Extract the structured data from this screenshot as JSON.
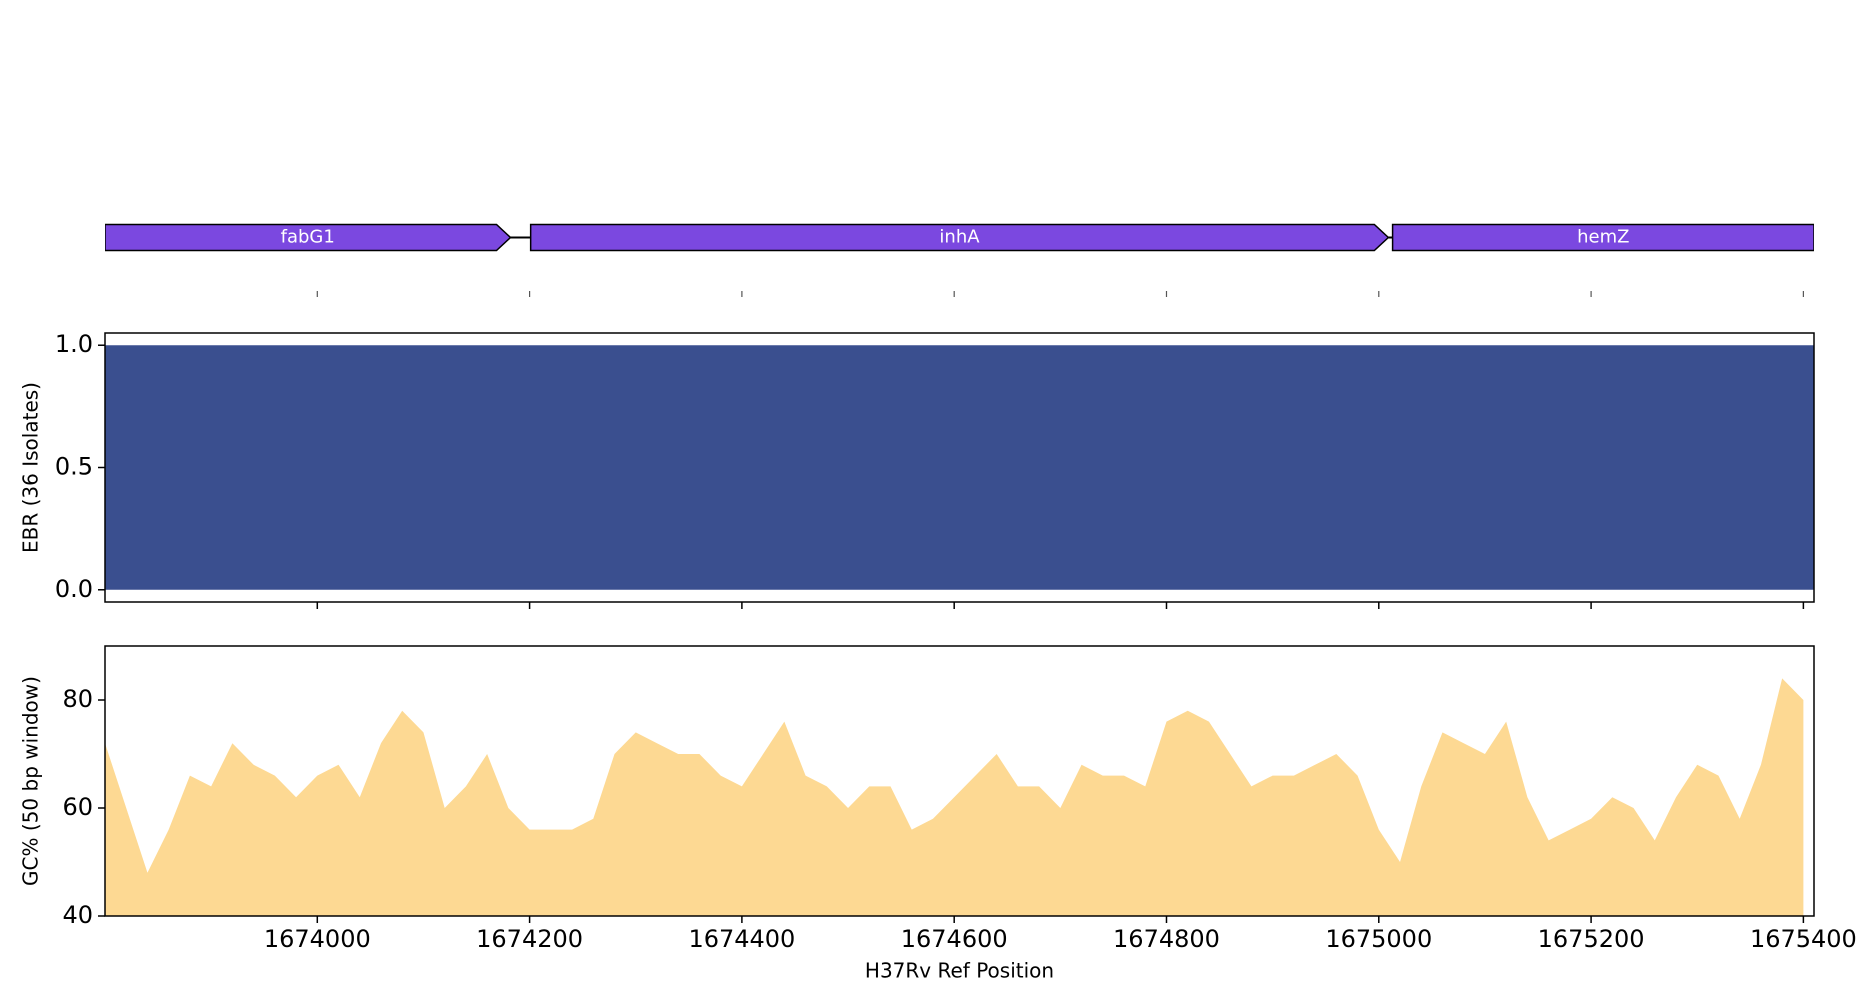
{
  "chart_data": [
    {
      "type": "genes",
      "genes": [
        {
          "name": "fabG1",
          "start": 1673800,
          "end": 1674182
        },
        {
          "name": "inhA",
          "start": 1674201,
          "end": 1675009
        },
        {
          "name": "hemZ",
          "start": 1675013,
          "end": 1675410
        }
      ],
      "color": "#7b48e0",
      "xlim": [
        1673800,
        1675410
      ],
      "xticks": [
        1674000,
        1674200,
        1674400,
        1674600,
        1674800,
        1675000,
        1675200,
        1675400
      ]
    },
    {
      "type": "area",
      "ylabel": "EBR (36 Isolates)",
      "xlim": [
        1673800,
        1675410
      ],
      "xticks": [
        1674000,
        1674200,
        1674400,
        1674600,
        1674800,
        1675000,
        1675200,
        1675400
      ],
      "ylim": [
        -0.05,
        1.05
      ],
      "yticks": [
        {
          "value": 0,
          "label": "0.0"
        },
        {
          "value": 0.5,
          "label": "0.5"
        },
        {
          "value": 1,
          "label": "1.0"
        }
      ],
      "x": [
        1673800,
        1675410
      ],
      "series": [
        {
          "color": "#3a4f8f",
          "values": [
            1,
            1
          ]
        }
      ]
    },
    {
      "type": "area",
      "ylabel": "GC% (50 bp window)",
      "xlabel": "H37Rv Ref Position",
      "xlim": [
        1673800,
        1675410
      ],
      "xticks": [
        1674000,
        1674200,
        1674400,
        1674600,
        1674800,
        1675000,
        1675200,
        1675400
      ],
      "ylim": [
        40,
        90
      ],
      "yticks": [
        40,
        60,
        80
      ],
      "x": [
        1673800,
        1673820,
        1673840,
        1673860,
        1673880,
        1673900,
        1673920,
        1673940,
        1673960,
        1673980,
        1674000,
        1674020,
        1674040,
        1674060,
        1674080,
        1674100,
        1674120,
        1674140,
        1674160,
        1674180,
        1674200,
        1674220,
        1674240,
        1674260,
        1674280,
        1674300,
        1674320,
        1674340,
        1674360,
        1674380,
        1674400,
        1674420,
        1674440,
        1674460,
        1674480,
        1674500,
        1674520,
        1674540,
        1674560,
        1674580,
        1674600,
        1674620,
        1674640,
        1674660,
        1674680,
        1674700,
        1674720,
        1674740,
        1674760,
        1674780,
        1674800,
        1674820,
        1674840,
        1674860,
        1674880,
        1674900,
        1674920,
        1674940,
        1674960,
        1674980,
        1675000,
        1675020,
        1675040,
        1675060,
        1675080,
        1675100,
        1675120,
        1675140,
        1675160,
        1675180,
        1675200,
        1675220,
        1675240,
        1675260,
        1675280,
        1675300,
        1675320,
        1675340,
        1675360,
        1675380,
        1675400
      ],
      "series": [
        {
          "color": "#fdd993",
          "values": [
            72,
            60,
            48,
            56,
            66,
            64,
            72,
            68,
            66,
            62,
            66,
            68,
            62,
            72,
            78,
            74,
            60,
            64,
            70,
            60,
            56,
            56,
            56,
            58,
            70,
            74,
            72,
            70,
            70,
            66,
            64,
            70,
            76,
            66,
            64,
            60,
            64,
            64,
            56,
            58,
            62,
            66,
            70,
            64,
            64,
            60,
            68,
            66,
            66,
            64,
            76,
            78,
            76,
            70,
            64,
            66,
            66,
            68,
            70,
            66,
            56,
            50,
            64,
            74,
            72,
            70,
            76,
            62,
            54,
            56,
            58,
            62,
            60,
            54,
            62,
            68,
            66,
            58,
            68,
            84,
            80
          ]
        }
      ]
    }
  ]
}
